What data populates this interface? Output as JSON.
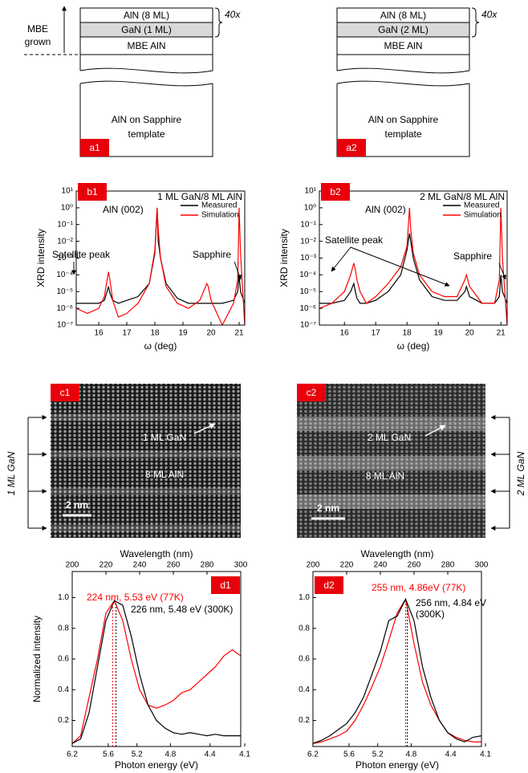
{
  "schematics": [
    {
      "panel_label": "a1",
      "layers": [
        "AlN (8 ML)",
        "GaN (1 ML)",
        "MBE AlN"
      ],
      "repeat": "40x",
      "substrate": [
        "AlN on Sapphire",
        "template"
      ],
      "growth_note": [
        "MBE",
        "grown"
      ]
    },
    {
      "panel_label": "a2",
      "layers": [
        "AlN (8 ML)",
        "GaN (2 ML)",
        "MBE AlN"
      ],
      "repeat": "40x",
      "substrate": [
        "AlN on Sapphire",
        "template"
      ]
    }
  ],
  "micrographs": [
    {
      "panel_label": "c1",
      "layer_labels": [
        "1 ML GaN",
        "8 ML AlN"
      ],
      "scale_bar": "2 nm",
      "side_label": "1 ML GaN"
    },
    {
      "panel_label": "c2",
      "layer_labels": [
        "2 ML GaN",
        "8 ML AlN"
      ],
      "scale_bar": "2 nm",
      "side_label": "2 ML GaN"
    }
  ],
  "chart_data": [
    {
      "type": "line",
      "panel_label": "b1",
      "title": "1 ML GaN/8 ML AlN",
      "xlabel": "ω (deg)",
      "ylabel": "XRD intensity",
      "y_scale": "log",
      "legend": "upper right",
      "x": [
        15.2,
        15.6,
        16.0,
        16.2,
        16.3,
        16.35,
        16.4,
        16.5,
        16.7,
        17.0,
        17.4,
        17.8,
        18.0,
        18.08,
        18.12,
        18.2,
        18.4,
        18.8,
        19.2,
        19.6,
        19.85,
        19.9,
        20.0,
        20.4,
        20.8,
        20.95,
        21.0,
        21.05,
        21.2
      ],
      "series": [
        {
          "name": "Measured",
          "color": "#000000",
          "values": [
            2e-06,
            2e-06,
            2e-06,
            3e-06,
            1e-05,
            2e-05,
            8e-06,
            3e-06,
            2e-06,
            3e-06,
            5e-06,
            3e-05,
            0.002,
            1,
            0.01,
            0.001,
            3e-05,
            4e-06,
            2e-06,
            2e-06,
            2e-06,
            2e-06,
            2e-06,
            2e-06,
            3e-06,
            1e-05,
            0.0001,
            1e-05,
            2e-06
          ]
        },
        {
          "name": "Simulation",
          "color": "#ff0000",
          "values": [
            1e-06,
            5e-07,
            1e-06,
            5e-06,
            5e-05,
            0.00015,
            5e-05,
            3e-06,
            3e-07,
            5e-07,
            2e-06,
            3e-05,
            0.003,
            1,
            0.05,
            0.001,
            2e-05,
            2e-06,
            1e-06,
            3e-06,
            3e-05,
            2e-05,
            3e-06,
            1e-07,
            2e-06,
            5e-05,
            1,
            0.002,
            1e-07
          ]
        }
      ],
      "xlim": [
        15.2,
        21.2
      ],
      "ylim": [
        1e-07,
        10
      ],
      "xticks": [
        16,
        17,
        18,
        19,
        20,
        21
      ],
      "yticks": [
        {
          "value": 1e-07,
          "label": "10⁻⁷"
        },
        {
          "value": 1e-06,
          "label": "10⁻⁶"
        },
        {
          "value": 1e-05,
          "label": "10⁻⁵"
        },
        {
          "value": 0.0001,
          "label": "10⁻⁴"
        },
        {
          "value": 0.001,
          "label": "10⁻³"
        },
        {
          "value": 0.01,
          "label": "10⁻²"
        },
        {
          "value": 0.1,
          "label": "10⁻¹"
        },
        {
          "value": 1,
          "label": "10⁰"
        },
        {
          "value": 10,
          "label": "10¹"
        }
      ],
      "annotations": [
        "AlN (002)",
        "Satellite peak",
        "Sapphire"
      ]
    },
    {
      "type": "line",
      "panel_label": "b2",
      "title": "2 ML GaN/8 ML AlN",
      "xlabel": "ω (deg)",
      "ylabel": "XRD intensity",
      "y_scale": "log",
      "legend": "upper right",
      "x": [
        15.2,
        15.6,
        16.0,
        16.2,
        16.3,
        16.35,
        16.4,
        16.5,
        16.7,
        17.0,
        17.4,
        17.8,
        18.0,
        18.08,
        18.12,
        18.2,
        18.4,
        18.8,
        19.2,
        19.6,
        19.85,
        19.9,
        20.0,
        20.4,
        20.8,
        20.95,
        21.0,
        21.05,
        21.2
      ],
      "series": [
        {
          "name": "Measured",
          "color": "#000000",
          "values": [
            2e-06,
            2e-06,
            3e-06,
            1e-05,
            3e-05,
            1e-05,
            4e-06,
            2e-06,
            2e-06,
            3e-06,
            1e-05,
            0.0001,
            0.003,
            0.03,
            0.01,
            0.001,
            5e-05,
            5e-06,
            3e-06,
            3e-06,
            1e-05,
            2e-05,
            5e-06,
            2e-06,
            2e-06,
            5e-06,
            0.0001,
            1e-05,
            2e-06
          ]
        },
        {
          "name": "Simulation",
          "color": "#ff0000",
          "values": [
            1e-06,
            2e-06,
            1e-05,
            0.0001,
            0.0005,
            0.0002,
            5e-05,
            1e-05,
            2e-06,
            5e-06,
            3e-05,
            0.0003,
            0.005,
            1,
            0.05,
            0.002,
            0.0001,
            1e-05,
            5e-06,
            5e-06,
            5e-05,
            0.0001,
            2e-05,
            2e-06,
            2e-06,
            5e-05,
            1,
            0.001,
            1e-07
          ]
        }
      ],
      "xlim": [
        15.2,
        21.2
      ],
      "ylim": [
        1e-07,
        10
      ],
      "xticks": [
        16,
        17,
        18,
        19,
        20,
        21
      ],
      "yticks": [
        {
          "value": 1e-07,
          "label": "10⁻⁷"
        },
        {
          "value": 1e-06,
          "label": "10⁻⁶"
        },
        {
          "value": 1e-05,
          "label": "10⁻⁵"
        },
        {
          "value": 0.0001,
          "label": "10⁻⁴"
        },
        {
          "value": 0.001,
          "label": "10⁻³"
        },
        {
          "value": 0.01,
          "label": "10⁻²"
        },
        {
          "value": 0.1,
          "label": "10⁻¹"
        },
        {
          "value": 1,
          "label": "10⁰"
        },
        {
          "value": 10,
          "label": "10¹"
        }
      ],
      "annotations": [
        "AlN (002)",
        "Satellite peak",
        "Sapphire"
      ]
    },
    {
      "type": "line",
      "panel_label": "d1",
      "xlabel": "Photon energy (eV)",
      "x2label": "Wavelength (nm)",
      "ylabel": "Normalized intensity",
      "x": [
        200,
        205,
        210,
        215,
        220,
        225,
        230,
        235,
        240,
        245,
        250,
        255,
        260,
        265,
        270,
        275,
        280,
        285,
        290,
        295,
        300
      ],
      "series": [
        {
          "color": "#ff0000",
          "peak": 224,
          "label": [
            "224 nm, 5.53 eV (77K)"
          ],
          "values": [
            0.05,
            0.1,
            0.35,
            0.6,
            0.9,
            0.98,
            0.85,
            0.6,
            0.4,
            0.3,
            0.28,
            0.3,
            0.33,
            0.38,
            0.4,
            0.45,
            0.5,
            0.55,
            0.62,
            0.66,
            0.62
          ]
        },
        {
          "color": "#000000",
          "peak": 226,
          "label": [
            "226 nm, 5.48 eV (300K)"
          ],
          "values": [
            0.05,
            0.08,
            0.25,
            0.55,
            0.85,
            0.98,
            0.95,
            0.75,
            0.5,
            0.3,
            0.2,
            0.15,
            0.12,
            0.11,
            0.12,
            0.11,
            0.1,
            0.11,
            0.1,
            0.1,
            0.1
          ]
        }
      ],
      "xlim": [
        200,
        300
      ],
      "xticks": [
        200,
        220,
        240,
        260,
        280,
        300
      ],
      "x2ticks": [
        6.2,
        5.6,
        5.2,
        4.8,
        4.4,
        4.1
      ],
      "ylim": [
        0.03,
        1.17
      ],
      "yticks": [
        {
          "value": 1,
          "label": "1.0"
        },
        0.8,
        0.6,
        0.4,
        0.2
      ]
    },
    {
      "type": "line",
      "panel_label": "d2",
      "xlabel": "Photon energy (eV)",
      "x2label": "Wavelength (nm)",
      "x": [
        200,
        205,
        210,
        215,
        220,
        225,
        230,
        235,
        240,
        245,
        250,
        255,
        260,
        265,
        270,
        275,
        280,
        285,
        290,
        295,
        300
      ],
      "series": [
        {
          "color": "#ff0000",
          "peak": 255,
          "label": [
            "255 nm, 4.86eV (77K)"
          ],
          "values": [
            0.05,
            0.06,
            0.08,
            0.1,
            0.13,
            0.2,
            0.3,
            0.42,
            0.55,
            0.72,
            0.9,
            0.99,
            0.7,
            0.45,
            0.3,
            0.2,
            0.12,
            0.09,
            0.07,
            0.06,
            0.06
          ]
        },
        {
          "color": "#000000",
          "peak": 256,
          "label": [
            "256 nm, 4.84 eV",
            "(300K)"
          ],
          "values": [
            0.05,
            0.07,
            0.1,
            0.14,
            0.18,
            0.25,
            0.35,
            0.5,
            0.65,
            0.85,
            0.88,
            0.99,
            0.85,
            0.55,
            0.35,
            0.2,
            0.12,
            0.08,
            0.06,
            0.09,
            0.1
          ]
        }
      ],
      "xlim": [
        200,
        300
      ],
      "xticks": [
        200,
        220,
        240,
        260,
        280,
        300
      ],
      "x2ticks": [
        6.2,
        5.6,
        5.2,
        4.8,
        4.4,
        4.1
      ],
      "ylim": [
        0.03,
        1.17
      ],
      "yticks": [
        {
          "value": 1,
          "label": "1.0"
        },
        0.8,
        0.6,
        0.4,
        0.2
      ]
    }
  ]
}
